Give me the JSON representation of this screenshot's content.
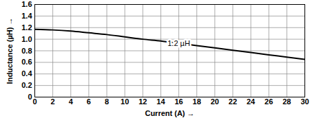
{
  "chart_data": {
    "type": "line",
    "x_label": "Current (A)",
    "y_label": "Inductance (µH)",
    "x": [
      0,
      2,
      4,
      6,
      8,
      10,
      12,
      14,
      16,
      18,
      20,
      22,
      24,
      26,
      28,
      30
    ],
    "series": [
      {
        "name": "1.2 µH",
        "color": "#000000",
        "values": [
          1.17,
          1.16,
          1.14,
          1.11,
          1.08,
          1.04,
          1.0,
          0.97,
          0.93,
          0.89,
          0.85,
          0.81,
          0.77,
          0.73,
          0.69,
          0.65
        ]
      }
    ],
    "xlim": [
      0,
      30
    ],
    "xticks": [
      0,
      2,
      4,
      6,
      8,
      10,
      12,
      14,
      16,
      18,
      20,
      22,
      24,
      26,
      28,
      30
    ],
    "ylim": [
      0,
      1.6
    ],
    "yticks": [
      0,
      0.2,
      0.4,
      0.6,
      0.8,
      {
        "value": 1,
        "label": "1.0"
      },
      1.2,
      1.4,
      1.6
    ],
    "grid": true
  }
}
